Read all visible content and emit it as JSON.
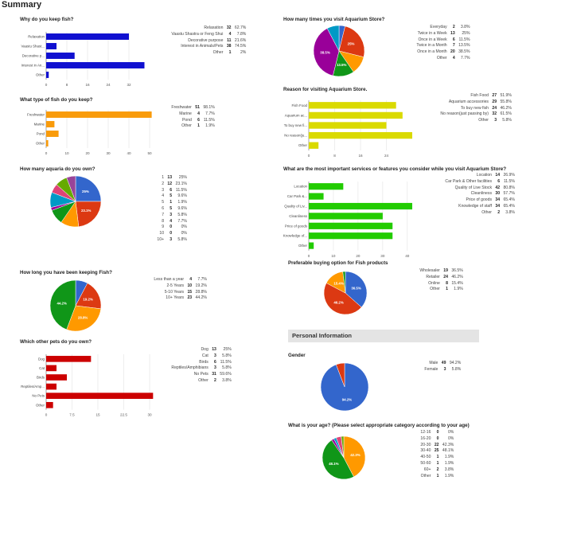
{
  "page_title": "Summary",
  "personal_info_header": "Personal Information",
  "questions": {
    "why_fish": {
      "title": "Why do you keep fish?",
      "rows": [
        {
          "label": "Relaxation",
          "count": "32",
          "pct": "62.7%"
        },
        {
          "label": "Vaastu Shastra or Feng Shui",
          "count": "4",
          "pct": "7.8%"
        },
        {
          "label": "Decorative purpose",
          "count": "11",
          "pct": "21.6%"
        },
        {
          "label": "Interest in Animals/Pets",
          "count": "38",
          "pct": "74.5%"
        },
        {
          "label": "Other",
          "count": "1",
          "pct": "2%"
        }
      ]
    },
    "fish_type": {
      "title": "What type of fish do you keep?",
      "rows": [
        {
          "label": "Freshwater",
          "count": "51",
          "pct": "98.1%"
        },
        {
          "label": "Marine",
          "count": "4",
          "pct": "7.7%"
        },
        {
          "label": "Pond",
          "count": "6",
          "pct": "11.5%"
        },
        {
          "label": "Other",
          "count": "1",
          "pct": "1.9%"
        }
      ]
    },
    "aquaria": {
      "title": "How many aquaria do you own?",
      "rows": [
        {
          "label": "1",
          "count": "13",
          "pct": "25%"
        },
        {
          "label": "2",
          "count": "12",
          "pct": "23.1%"
        },
        {
          "label": "3",
          "count": "6",
          "pct": "11.5%"
        },
        {
          "label": "4",
          "count": "5",
          "pct": "9.6%"
        },
        {
          "label": "5",
          "count": "1",
          "pct": "1.9%"
        },
        {
          "label": "6",
          "count": "5",
          "pct": "9.6%"
        },
        {
          "label": "7",
          "count": "3",
          "pct": "5.8%"
        },
        {
          "label": "8",
          "count": "4",
          "pct": "7.7%"
        },
        {
          "label": "9",
          "count": "0",
          "pct": "0%"
        },
        {
          "label": "10",
          "count": "0",
          "pct": "0%"
        },
        {
          "label": "10+",
          "count": "3",
          "pct": "5.8%"
        }
      ]
    },
    "how_long": {
      "title": "How long you have been keeping Fish?",
      "rows": [
        {
          "label": "Less than a year",
          "count": "4",
          "pct": "7.7%"
        },
        {
          "label": "2-5 Years",
          "count": "10",
          "pct": "19.2%"
        },
        {
          "label": "5-10 Years",
          "count": "15",
          "pct": "28.8%"
        },
        {
          "label": "10+ Years",
          "count": "23",
          "pct": "44.2%"
        }
      ]
    },
    "other_pets": {
      "title": "Which other pets do you own?",
      "rows": [
        {
          "label": "Dog",
          "count": "13",
          "pct": "25%"
        },
        {
          "label": "Cat",
          "count": "3",
          "pct": "5.8%"
        },
        {
          "label": "Birds",
          "count": "6",
          "pct": "11.5%"
        },
        {
          "label": "Reptiles/Amphibians",
          "count": "3",
          "pct": "5.8%"
        },
        {
          "label": "No Pets",
          "count": "31",
          "pct": "59.6%"
        },
        {
          "label": "Other",
          "count": "2",
          "pct": "3.8%"
        }
      ]
    },
    "visit_times": {
      "title": "How many times you visit Aquarium Store?",
      "rows": [
        {
          "label": "Everyday",
          "count": "2",
          "pct": "3.8%"
        },
        {
          "label": "Twice in a Week",
          "count": "13",
          "pct": "25%"
        },
        {
          "label": "Once in a Week",
          "count": "6",
          "pct": "11.5%"
        },
        {
          "label": "Twice in a Month",
          "count": "7",
          "pct": "13.5%"
        },
        {
          "label": "Once in a Month",
          "count": "20",
          "pct": "38.5%"
        },
        {
          "label": "Other",
          "count": "4",
          "pct": "7.7%"
        }
      ]
    },
    "reason_visit": {
      "title": "Reason for visiting Aquarium Store.",
      "rows": [
        {
          "label": "Fish Food",
          "count": "27",
          "pct": "51.9%"
        },
        {
          "label": "Aquarium accessories",
          "count": "29",
          "pct": "55.8%"
        },
        {
          "label": "To buy new fish",
          "count": "24",
          "pct": "46.2%"
        },
        {
          "label": "No reason(just passing by)",
          "count": "32",
          "pct": "61.5%"
        },
        {
          "label": "Other",
          "count": "3",
          "pct": "5.8%"
        }
      ]
    },
    "services": {
      "title": "What are the most important services or features you consider while you visit Aquarium Store?",
      "rows": [
        {
          "label": "Location",
          "count": "14",
          "pct": "26.9%"
        },
        {
          "label": "Car Park & Other facilities",
          "count": "6",
          "pct": "11.5%"
        },
        {
          "label": "Quality of Live Stock",
          "count": "42",
          "pct": "80.8%"
        },
        {
          "label": "Cleanliness",
          "count": "30",
          "pct": "57.7%"
        },
        {
          "label": "Price of goods",
          "count": "34",
          "pct": "65.4%"
        },
        {
          "label": "Knowledge of staff",
          "count": "34",
          "pct": "65.4%"
        },
        {
          "label": "Other",
          "count": "2",
          "pct": "3.8%"
        }
      ]
    },
    "buying": {
      "title": "Preferable buying option for Fish products",
      "rows": [
        {
          "label": "Wholesaler",
          "count": "19",
          "pct": "36.5%"
        },
        {
          "label": "Retailer",
          "count": "24",
          "pct": "46.2%"
        },
        {
          "label": "Online",
          "count": "8",
          "pct": "15.4%"
        },
        {
          "label": "Other",
          "count": "1",
          "pct": "1.9%"
        }
      ]
    },
    "gender": {
      "title": "Gender",
      "rows": [
        {
          "label": "Male",
          "count": "49",
          "pct": "94.2%"
        },
        {
          "label": "Female",
          "count": "3",
          "pct": "5.8%"
        }
      ]
    },
    "age": {
      "title": "What is your age? (Please select appropriate category according to your age)",
      "rows": [
        {
          "label": "12-16",
          "count": "0",
          "pct": "0%"
        },
        {
          "label": "16-20",
          "count": "0",
          "pct": "0%"
        },
        {
          "label": "20-30",
          "count": "22",
          "pct": "42.3%"
        },
        {
          "label": "30-40",
          "count": "25",
          "pct": "48.1%"
        },
        {
          "label": "40-50",
          "count": "1",
          "pct": "1.9%"
        },
        {
          "label": "50-60",
          "count": "1",
          "pct": "1.9%"
        },
        {
          "label": "60+",
          "count": "2",
          "pct": "3.8%"
        },
        {
          "label": "Other",
          "count": "1",
          "pct": "1.9%"
        }
      ]
    }
  },
  "chart_data": [
    {
      "id": "why_fish",
      "type": "bar",
      "orientation": "horizontal",
      "color": "#1010d0",
      "categories": [
        "Relaxation",
        "Vaastu Shast...",
        "Decorative p...",
        "Interest in An...",
        "Other"
      ],
      "values": [
        32,
        4,
        11,
        38,
        1
      ],
      "xlim": [
        0,
        40
      ],
      "xticks": [
        0,
        8,
        16,
        24,
        32
      ],
      "grid": true
    },
    {
      "id": "fish_type",
      "type": "bar",
      "orientation": "horizontal",
      "color": "#f99b0a",
      "categories": [
        "Freshwater",
        "Marine",
        "Pond",
        "Other"
      ],
      "values": [
        51,
        4,
        6,
        1
      ],
      "xlim": [
        0,
        50
      ],
      "xticks": [
        0,
        10,
        20,
        30,
        40,
        50
      ],
      "grid": true
    },
    {
      "id": "aquaria",
      "type": "pie",
      "categories": [
        "1",
        "2",
        "3",
        "4",
        "5",
        "6",
        "7",
        "8",
        "9",
        "10",
        "10+"
      ],
      "values": [
        13,
        12,
        6,
        5,
        1,
        5,
        3,
        4,
        0,
        0,
        3
      ],
      "colors": [
        "#3366cc",
        "#dc3912",
        "#ff9900",
        "#109618",
        "#990099",
        "#0099c6",
        "#dd4477",
        "#66aa00",
        "#b82e2e",
        "#316395",
        "#994499"
      ],
      "slice_labels": [
        "25%",
        "23.1%",
        "",
        "",
        "",
        "",
        "",
        "",
        "",
        "",
        ""
      ]
    },
    {
      "id": "how_long",
      "type": "pie",
      "categories": [
        "Less than a year",
        "2-5 Years",
        "5-10 Years",
        "10+ Years"
      ],
      "values": [
        4,
        10,
        15,
        23
      ],
      "colors": [
        "#3366cc",
        "#dc3912",
        "#ff9900",
        "#109618"
      ],
      "slice_labels": [
        "",
        "19.2%",
        "28.8%",
        "44.2%"
      ]
    },
    {
      "id": "other_pets",
      "type": "bar",
      "orientation": "horizontal",
      "color": "#cc0000",
      "categories": [
        "Dog",
        "Cat",
        "Birds",
        "Reptiles/Amp...",
        "No Pets",
        "Other"
      ],
      "values": [
        13,
        3,
        6,
        3,
        31,
        2
      ],
      "xlim": [
        0,
        30
      ],
      "xticks": [
        0,
        7.5,
        15,
        22.5,
        30
      ],
      "grid": true
    },
    {
      "id": "visit_times",
      "type": "pie",
      "categories": [
        "Everyday",
        "Twice in a Week",
        "Once in a Week",
        "Twice in a Month",
        "Once in a Month",
        "Other"
      ],
      "values": [
        2,
        13,
        6,
        7,
        20,
        4
      ],
      "colors": [
        "#3366cc",
        "#dc3912",
        "#ff9900",
        "#109618",
        "#990099",
        "#0099c6"
      ],
      "slice_labels": [
        "",
        "25%",
        "",
        "13.5%",
        "38.5%",
        ""
      ]
    },
    {
      "id": "reason_visit",
      "type": "bar",
      "orientation": "horizontal",
      "color": "#dada00",
      "categories": [
        "Fish Food",
        "Aquarium ac...",
        "To buy new fi...",
        "No reason(ju...",
        "Other"
      ],
      "values": [
        27,
        29,
        24,
        32,
        3
      ],
      "xlim": [
        0,
        32
      ],
      "xticks": [
        0,
        8,
        16,
        24
      ],
      "grid": true
    },
    {
      "id": "services",
      "type": "bar",
      "orientation": "horizontal",
      "color": "#22cc00",
      "categories": [
        "Location",
        "Car Park &...",
        "Quality of Liv...",
        "Cleanliness",
        "Price of goods",
        "Knowledge of...",
        "Other"
      ],
      "values": [
        14,
        6,
        42,
        30,
        34,
        34,
        2
      ],
      "xlim": [
        0,
        42
      ],
      "xticks": [
        0,
        10,
        20,
        30,
        40
      ],
      "grid": true
    },
    {
      "id": "buying",
      "type": "pie",
      "categories": [
        "Wholesaler",
        "Retailer",
        "Online",
        "Other"
      ],
      "values": [
        19,
        24,
        8,
        1
      ],
      "colors": [
        "#3366cc",
        "#dc3912",
        "#ff9900",
        "#109618"
      ],
      "slice_labels": [
        "36.5%",
        "46.2%",
        "15.4%",
        ""
      ]
    },
    {
      "id": "gender",
      "type": "pie",
      "categories": [
        "Male",
        "Female"
      ],
      "values": [
        49,
        3
      ],
      "colors": [
        "#3366cc",
        "#dc3912"
      ],
      "slice_labels": [
        "94.2%",
        ""
      ]
    },
    {
      "id": "age",
      "type": "pie",
      "categories": [
        "12-16",
        "16-20",
        "20-30",
        "30-40",
        "40-50",
        "50-60",
        "60+",
        "Other"
      ],
      "values": [
        0,
        0,
        22,
        25,
        1,
        1,
        2,
        1
      ],
      "colors": [
        "#3366cc",
        "#dc3912",
        "#ff9900",
        "#109618",
        "#990099",
        "#0099c6",
        "#dd4477",
        "#66aa00"
      ],
      "slice_labels": [
        "",
        "",
        "42.3%",
        "48.1%",
        "",
        "",
        "",
        ""
      ]
    }
  ]
}
